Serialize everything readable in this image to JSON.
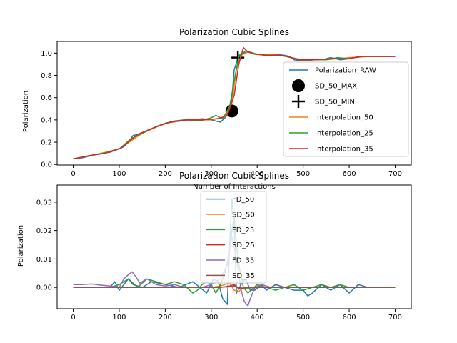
{
  "chart_data": [
    {
      "type": "line",
      "title": "Polarization Cubic Splines",
      "xlabel": "Number of Interactions",
      "ylabel": "Polarization",
      "xlim": [
        -35,
        735
      ],
      "ylim": [
        -0.005,
        1.105
      ],
      "xticks": [
        0,
        100,
        200,
        300,
        400,
        500,
        600,
        700
      ],
      "yticks": [
        0.0,
        0.2,
        0.4,
        0.6,
        0.8,
        1.0
      ],
      "ytick_labels": [
        "0.0",
        "0.2",
        "0.4",
        "0.6",
        "0.8",
        "1.0"
      ],
      "legend_position": "right",
      "series": [
        {
          "name": "Polarization_RAW",
          "kind": "line",
          "color": "#1f77b4",
          "x": [
            0,
            20,
            40,
            60,
            80,
            100,
            110,
            120,
            130,
            140,
            160,
            180,
            200,
            220,
            240,
            260,
            280,
            300,
            310,
            320,
            330,
            340,
            345,
            350,
            360,
            370,
            380,
            390,
            400,
            420,
            440,
            460,
            470,
            480,
            500,
            520,
            540,
            560,
            580,
            600,
            620,
            640,
            660,
            680,
            700
          ],
          "y": [
            0.05,
            0.06,
            0.08,
            0.1,
            0.11,
            0.14,
            0.16,
            0.2,
            0.26,
            0.27,
            0.3,
            0.34,
            0.37,
            0.39,
            0.4,
            0.4,
            0.41,
            0.4,
            0.39,
            0.38,
            0.42,
            0.47,
            0.6,
            0.85,
            0.98,
            1.0,
            1.01,
            1.0,
            0.99,
            0.98,
            0.99,
            0.98,
            0.97,
            0.94,
            0.93,
            0.94,
            0.94,
            0.96,
            0.94,
            0.95,
            0.97,
            0.97,
            0.97,
            0.97,
            0.97
          ]
        },
        {
          "name": "SD_50_MAX",
          "kind": "marker-dot",
          "color": "#000000",
          "x": [
            345
          ],
          "y": [
            0.48
          ]
        },
        {
          "name": "SD_50_MIN",
          "kind": "marker-plus",
          "color": "#000000",
          "x": [
            358
          ],
          "y": [
            0.96
          ]
        },
        {
          "name": "Interpolation_50",
          "kind": "line",
          "color": "#ff7f0e",
          "x": [
            0,
            50,
            100,
            150,
            200,
            250,
            300,
            330,
            345,
            355,
            365,
            380,
            400,
            450,
            500,
            550,
            600,
            650,
            700
          ],
          "y": [
            0.05,
            0.09,
            0.14,
            0.28,
            0.37,
            0.4,
            0.4,
            0.43,
            0.55,
            0.85,
            0.98,
            1.01,
            0.99,
            0.98,
            0.94,
            0.94,
            0.96,
            0.97,
            0.97
          ]
        },
        {
          "name": "Interpolation_25",
          "kind": "line",
          "color": "#2ca02c",
          "x": [
            0,
            25,
            50,
            75,
            100,
            125,
            150,
            175,
            200,
            225,
            250,
            275,
            300,
            310,
            325,
            340,
            350,
            360,
            375,
            400,
            425,
            450,
            475,
            500,
            525,
            550,
            575,
            600,
            625,
            650,
            675,
            700
          ],
          "y": [
            0.05,
            0.07,
            0.09,
            0.11,
            0.14,
            0.23,
            0.28,
            0.33,
            0.37,
            0.39,
            0.4,
            0.39,
            0.42,
            0.44,
            0.41,
            0.52,
            0.75,
            0.97,
            1.02,
            0.99,
            0.98,
            0.98,
            0.96,
            0.93,
            0.94,
            0.94,
            0.96,
            0.95,
            0.97,
            0.97,
            0.97,
            0.97
          ]
        },
        {
          "name": "Interpolation_35",
          "kind": "line",
          "color": "#d62728",
          "x": [
            0,
            35,
            70,
            105,
            140,
            175,
            210,
            245,
            280,
            315,
            335,
            350,
            360,
            370,
            380,
            395,
            420,
            455,
            490,
            525,
            560,
            595,
            630,
            665,
            700
          ],
          "y": [
            0.05,
            0.08,
            0.1,
            0.15,
            0.27,
            0.33,
            0.38,
            0.4,
            0.4,
            0.41,
            0.44,
            0.62,
            0.9,
            1.05,
            1.01,
            0.99,
            0.98,
            0.98,
            0.94,
            0.94,
            0.95,
            0.95,
            0.97,
            0.97,
            0.97
          ]
        }
      ]
    },
    {
      "type": "line",
      "title": "Polarization Cubic Splines",
      "xlabel": "",
      "ylabel": "Polarization",
      "xlim": [
        -35,
        735
      ],
      "ylim": [
        -0.0075,
        0.036
      ],
      "xticks": [
        0,
        100,
        200,
        300,
        400,
        500,
        600,
        700
      ],
      "yticks": [
        0.0,
        0.01,
        0.02,
        0.03
      ],
      "ytick_labels": [
        "0.00",
        "0.01",
        "0.02",
        "0.03"
      ],
      "legend_position": "upper center",
      "series": [
        {
          "name": "FD_50",
          "kind": "line",
          "color": "#1f77b4",
          "x": [
            0,
            50,
            80,
            90,
            100,
            110,
            120,
            130,
            150,
            170,
            200,
            230,
            260,
            290,
            305,
            315,
            325,
            335,
            340,
            345,
            350,
            355,
            365,
            375,
            385,
            395,
            410,
            420,
            440,
            460,
            480,
            500,
            510,
            520,
            540,
            560,
            580,
            600,
            620,
            640,
            660,
            700
          ],
          "y": [
            0.0,
            0.0,
            0.0,
            0.002,
            -0.001,
            0.001,
            0.003,
            0.001,
            0.0,
            0.002,
            0.001,
            0.0,
            0.002,
            -0.002,
            0.003,
            0.002,
            -0.004,
            -0.006,
            0.015,
            0.031,
            0.022,
            -0.002,
            0.001,
            0.003,
            -0.001,
            -0.001,
            0.001,
            -0.001,
            0.001,
            0.0,
            -0.001,
            -0.001,
            -0.003,
            -0.002,
            0.001,
            -0.001,
            0.001,
            -0.002,
            0.001,
            0.0,
            0.0,
            0.0
          ]
        },
        {
          "name": "SD_50",
          "kind": "line",
          "color": "#ff7f0e",
          "x": [
            0,
            100,
            200,
            280,
            300,
            320,
            330,
            340,
            350,
            360,
            370,
            380,
            400,
            500,
            600,
            700
          ],
          "y": [
            0.0,
            0.0,
            0.0,
            0.0,
            0.0,
            0.0005,
            0.001,
            0.0015,
            -0.001,
            -0.0015,
            0.0,
            0.0,
            0.0,
            0.0,
            0.0,
            0.0
          ]
        },
        {
          "name": "FD_25",
          "kind": "line",
          "color": "#2ca02c",
          "x": [
            0,
            50,
            80,
            100,
            110,
            120,
            140,
            160,
            180,
            200,
            220,
            240,
            260,
            270,
            280,
            290,
            300,
            310,
            320,
            330,
            340,
            345,
            350,
            355,
            360,
            370,
            380,
            400,
            420,
            440,
            460,
            480,
            500,
            520,
            540,
            560,
            580,
            600,
            620,
            640,
            700
          ],
          "y": [
            0.0,
            0.0,
            0.0,
            0.001,
            0.002,
            0.003,
            0.0,
            0.003,
            0.002,
            0.001,
            0.002,
            0.001,
            -0.002,
            -0.001,
            0.001,
            0.002,
            0.001,
            -0.002,
            0.001,
            0.005,
            0.013,
            0.02,
            0.025,
            0.015,
            0.008,
            0.0,
            -0.002,
            0.001,
            0.0,
            -0.001,
            0.0,
            0.001,
            -0.001,
            0.0,
            0.001,
            0.0,
            0.001,
            0.0,
            0.0,
            0.0,
            0.0
          ]
        },
        {
          "name": "SD_25",
          "kind": "line",
          "color": "#d62728",
          "x": [
            0,
            100,
            200,
            300,
            320,
            340,
            350,
            360,
            380,
            400,
            500,
            600,
            700
          ],
          "y": [
            0.0,
            0.0,
            0.0,
            0.0,
            0.0,
            0.0005,
            0.001,
            -0.0005,
            0.0,
            0.0,
            0.0,
            0.0,
            0.0
          ]
        },
        {
          "name": "FD_35",
          "kind": "line",
          "color": "#9467bd",
          "x": [
            0,
            20,
            40,
            60,
            80,
            100,
            110,
            120,
            128,
            135,
            145,
            160,
            180,
            200,
            220,
            240,
            260,
            280,
            300,
            320,
            335,
            345,
            355,
            365,
            372,
            380,
            385,
            395,
            410,
            430,
            460,
            500,
            540,
            580,
            620,
            660,
            700
          ],
          "y": [
            0.001,
            0.001,
            0.0012,
            0.0008,
            0.0005,
            0.0,
            0.003,
            0.0045,
            0.0055,
            0.004,
            0.0015,
            0.003,
            0.001,
            0.0005,
            0.001,
            0.0,
            0.0,
            0.0,
            0.001,
            0.003,
            0.008,
            0.018,
            0.01,
            -0.001,
            -0.005,
            -0.0065,
            -0.004,
            0.0,
            0.001,
            0.0,
            0.0,
            0.0,
            0.0,
            0.0,
            0.0,
            0.0,
            0.0
          ]
        },
        {
          "name": "SD_35",
          "kind": "line",
          "color": "#8c564b",
          "x": [
            0,
            100,
            200,
            300,
            340,
            350,
            360,
            370,
            400,
            500,
            600,
            700
          ],
          "y": [
            0.0,
            0.0,
            0.0,
            0.0,
            0.0002,
            0.0005,
            0.0,
            -0.0003,
            0.0,
            0.0,
            0.0,
            0.0
          ]
        }
      ]
    }
  ]
}
